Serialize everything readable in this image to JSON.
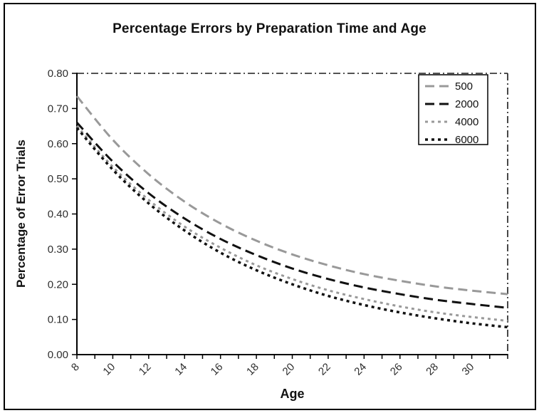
{
  "figure": {
    "title": "Percentage Errors by Preparation Time and Age",
    "x_axis_title": "Age",
    "y_axis_title": "Percentage of Error Trials"
  },
  "colors": {
    "background": "#ffffff",
    "frame_border": "#000000",
    "axis": "#000000",
    "tick_label": "#2e2e2e",
    "gridline": "#1a1a1a",
    "gray_series": "#999999",
    "black_series": "#111111"
  },
  "chart_data": {
    "type": "line",
    "title": "Percentage Errors by Preparation Time and Age",
    "xlabel": "Age",
    "ylabel": "Percentage of Error Trials",
    "xlim": [
      8,
      32
    ],
    "ylim": [
      0.0,
      0.8
    ],
    "x_minor_tick_every": 1,
    "x_tick_ages": [
      8,
      10,
      12,
      14,
      16,
      18,
      20,
      22,
      24,
      26,
      28,
      30
    ],
    "x_tick_labels": [
      "8",
      "10",
      "12",
      "14",
      "16",
      "18",
      "20",
      "22",
      "24",
      "26",
      "28",
      "30"
    ],
    "y_ticks": [
      0.0,
      0.1,
      0.2,
      0.3,
      0.4,
      0.5,
      0.6,
      0.7,
      0.8
    ],
    "y_tick_labels": [
      "0.00",
      "0.10",
      "0.20",
      "0.30",
      "0.40",
      "0.50",
      "0.60",
      "0.70",
      "0.80"
    ],
    "grid": "single dash-dot horizontal gridline at y=0.80; dash-dot vertical border at right edge",
    "legend_position": "top-right",
    "x": [
      8,
      10,
      12,
      14,
      16,
      18,
      20,
      22,
      24,
      26,
      28,
      30,
      32
    ],
    "series": [
      {
        "name": "500",
        "color": "#999999",
        "dash": "long-dash",
        "width": 3,
        "values": [
          0.735,
          0.611,
          0.513,
          0.435,
          0.373,
          0.324,
          0.285,
          0.254,
          0.229,
          0.21,
          0.194,
          0.182,
          0.172
        ]
      },
      {
        "name": "2000",
        "color": "#111111",
        "dash": "long-dash",
        "width": 3,
        "values": [
          0.66,
          0.549,
          0.459,
          0.387,
          0.329,
          0.283,
          0.245,
          0.215,
          0.191,
          0.172,
          0.156,
          0.144,
          0.133
        ]
      },
      {
        "name": "4000",
        "color": "#999999",
        "dash": "dot",
        "width": 3,
        "values": [
          0.65,
          0.534,
          0.44,
          0.364,
          0.304,
          0.254,
          0.215,
          0.183,
          0.158,
          0.137,
          0.12,
          0.107,
          0.096
        ]
      },
      {
        "name": "6000",
        "color": "#111111",
        "dash": "dot",
        "width": 3.5,
        "values": [
          0.645,
          0.526,
          0.43,
          0.353,
          0.29,
          0.24,
          0.2,
          0.167,
          0.141,
          0.12,
          0.103,
          0.089,
          0.078
        ]
      }
    ]
  }
}
